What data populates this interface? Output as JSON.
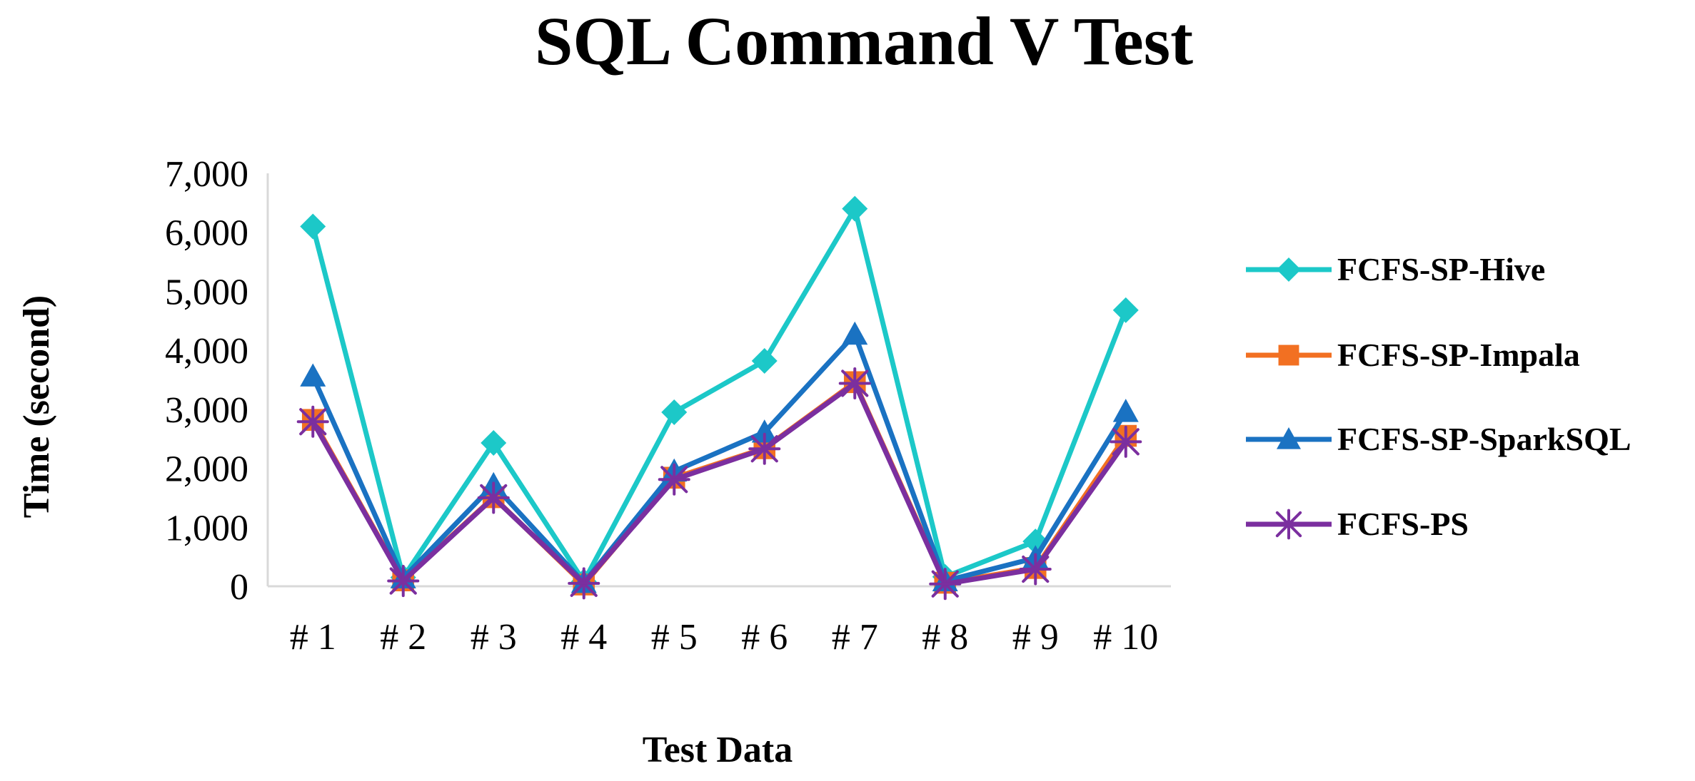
{
  "chart_data": {
    "type": "line",
    "title": "SQL Command V Test",
    "xlabel": "Test Data",
    "ylabel": "Time (second)",
    "ylim": [
      0,
      7000
    ],
    "yticks": [
      0,
      1000,
      2000,
      3000,
      4000,
      5000,
      6000,
      7000
    ],
    "ytick_labels": [
      "0",
      "1,000",
      "2,000",
      "3,000",
      "4,000",
      "5,000",
      "6,000",
      "7,000"
    ],
    "grid": false,
    "legend_position": "right",
    "categories": [
      "# 1",
      "# 2",
      "# 3",
      "# 4",
      "# 5",
      "# 6",
      "# 7",
      "# 8",
      "# 9",
      "# 10"
    ],
    "series": [
      {
        "name": "FCFS-SP-Hive",
        "color": "#1cc8c8",
        "marker": "diamond",
        "values": [
          6100,
          150,
          2430,
          80,
          2950,
          3820,
          6400,
          160,
          760,
          4680
        ]
      },
      {
        "name": "FCFS-SP-Impala",
        "color": "#f27022",
        "marker": "square",
        "values": [
          2820,
          100,
          1510,
          30,
          1840,
          2340,
          3460,
          60,
          310,
          2550
        ]
      },
      {
        "name": "FCFS-SP-SparkSQL",
        "color": "#1a72c2",
        "marker": "triangle",
        "values": [
          3560,
          140,
          1720,
          60,
          1950,
          2610,
          4270,
          90,
          480,
          2960
        ]
      },
      {
        "name": "FCFS-PS",
        "color": "#7b2f9f",
        "marker": "asterisk",
        "values": [
          2790,
          90,
          1500,
          50,
          1810,
          2330,
          3440,
          40,
          290,
          2450
        ]
      }
    ]
  }
}
